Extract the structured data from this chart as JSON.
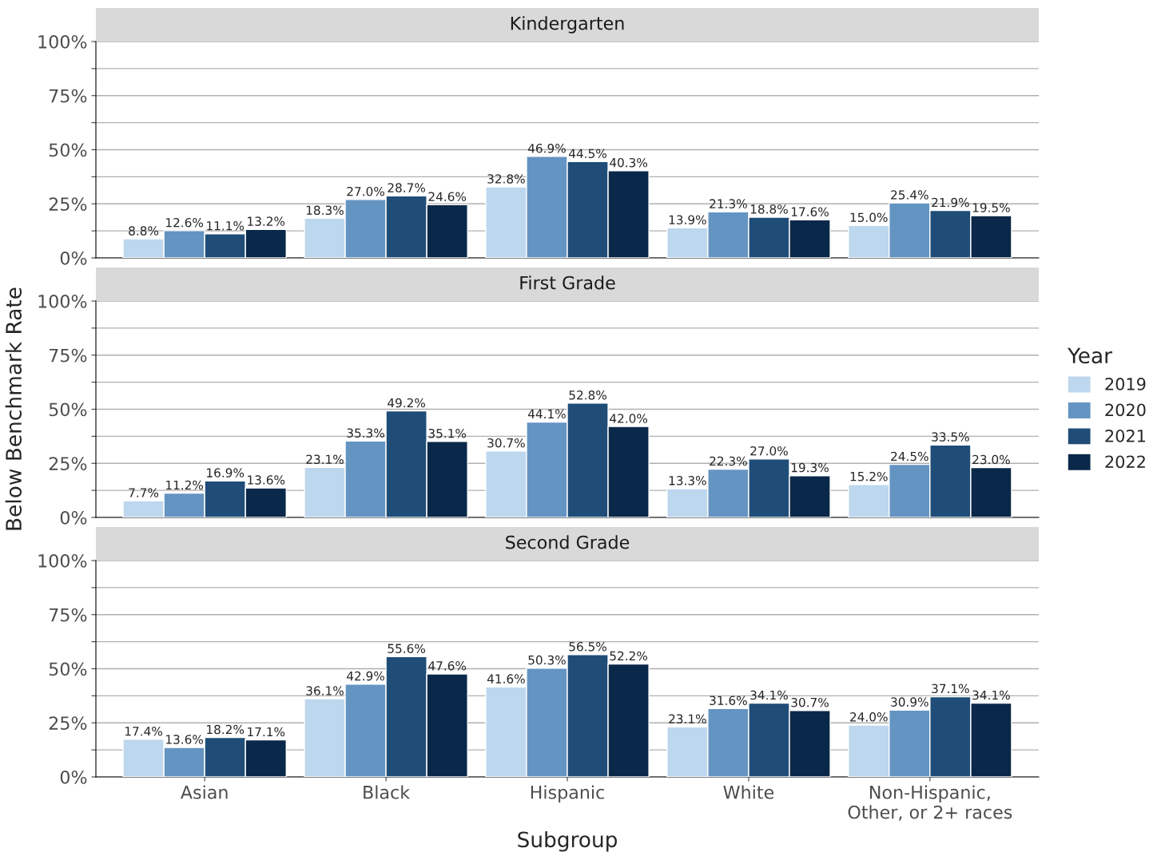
{
  "chart_data": [
    {
      "type": "bar",
      "title": "Kindergarten",
      "categories": [
        null,
        null,
        null,
        null,
        null
      ],
      "series": [
        {
          "color": "#bdd7ee",
          "values": [
            8.8,
            18.3,
            32.8,
            13.9,
            15.0
          ],
          "value_labels": [
            "8.8%",
            "18.3%",
            "32.8%",
            "13.9%",
            "15.0%"
          ]
        },
        {
          "color": "#6494c2",
          "values": [
            12.6,
            27.0,
            46.9,
            21.3,
            25.4
          ],
          "value_labels": [
            "12.6%",
            "27.0%",
            "46.9%",
            "21.3%",
            "25.4%"
          ]
        },
        {
          "color": "#1f4d78",
          "values": [
            11.1,
            28.7,
            44.5,
            18.8,
            21.9
          ],
          "value_labels": [
            "11.1%",
            "28.7%",
            "44.5%",
            "18.8%",
            "21.9%"
          ]
        },
        {
          "color": "#0a2849",
          "values": [
            13.2,
            24.6,
            40.3,
            17.6,
            19.5
          ],
          "value_labels": [
            "13.2%",
            "24.6%",
            "40.3%",
            "17.6%",
            "19.5%"
          ]
        }
      ],
      "ylim": [
        0,
        100
      ],
      "yticks": [
        {
          "value": 0,
          "label": "0%"
        },
        {
          "value": 12.5,
          "label": null
        },
        {
          "value": 25,
          "label": "25%"
        },
        {
          "value": 37.5,
          "label": null
        },
        {
          "value": 50,
          "label": "50%"
        },
        {
          "value": 62.5,
          "label": null
        },
        {
          "value": 75,
          "label": "75%"
        },
        {
          "value": 87.5,
          "label": null
        },
        {
          "value": 100,
          "label": "100%"
        }
      ],
      "grid": "y",
      "tick_labels": "y"
    },
    {
      "type": "bar",
      "title": "First Grade",
      "ylabel": "Below Benchmark Rate",
      "legend_title": "Year",
      "legend": "right",
      "categories": [
        null,
        null,
        null,
        null,
        null
      ],
      "series": [
        {
          "name": "2019",
          "color": "#bdd7ee",
          "values": [
            7.7,
            23.1,
            30.7,
            13.3,
            15.2
          ],
          "value_labels": [
            "7.7%",
            "23.1%",
            "30.7%",
            "13.3%",
            "15.2%"
          ]
        },
        {
          "name": "2020",
          "color": "#6494c2",
          "values": [
            11.2,
            35.3,
            44.1,
            22.3,
            24.5
          ],
          "value_labels": [
            "11.2%",
            "35.3%",
            "44.1%",
            "22.3%",
            "24.5%"
          ]
        },
        {
          "name": "2021",
          "color": "#1f4d78",
          "values": [
            16.9,
            49.2,
            52.8,
            27.0,
            33.5
          ],
          "value_labels": [
            "16.9%",
            "49.2%",
            "52.8%",
            "27.0%",
            "33.5%"
          ]
        },
        {
          "name": "2022",
          "color": "#0a2849",
          "values": [
            13.6,
            35.1,
            42.0,
            19.3,
            23.0
          ],
          "value_labels": [
            "13.6%",
            "35.1%",
            "42.0%",
            "19.3%",
            "23.0%"
          ]
        }
      ],
      "ylim": [
        0,
        100
      ],
      "yticks": [
        {
          "value": 0,
          "label": "0%"
        },
        {
          "value": 12.5,
          "label": null
        },
        {
          "value": 25,
          "label": "25%"
        },
        {
          "value": 37.5,
          "label": null
        },
        {
          "value": 50,
          "label": "50%"
        },
        {
          "value": 62.5,
          "label": null
        },
        {
          "value": 75,
          "label": "75%"
        },
        {
          "value": 87.5,
          "label": null
        },
        {
          "value": 100,
          "label": "100%"
        }
      ],
      "grid": "y",
      "tick_labels": "y"
    },
    {
      "type": "bar",
      "title": "Second Grade",
      "xlabel": "Subgroup",
      "categories": [
        "Asian",
        "Black",
        "Hispanic",
        "White",
        "Non-Hispanic,\nOther, or 2+ races"
      ],
      "series": [
        {
          "color": "#bdd7ee",
          "values": [
            17.4,
            36.1,
            41.6,
            23.1,
            24.0
          ],
          "value_labels": [
            "17.4%",
            "36.1%",
            "41.6%",
            "23.1%",
            "24.0%"
          ]
        },
        {
          "color": "#6494c2",
          "values": [
            13.6,
            42.9,
            50.3,
            31.6,
            30.9
          ],
          "value_labels": [
            "13.6%",
            "42.9%",
            "50.3%",
            "31.6%",
            "30.9%"
          ]
        },
        {
          "color": "#1f4d78",
          "values": [
            18.2,
            55.6,
            56.5,
            34.1,
            37.1
          ],
          "value_labels": [
            "18.2%",
            "55.6%",
            "56.5%",
            "34.1%",
            "37.1%"
          ]
        },
        {
          "color": "#0a2849",
          "values": [
            17.1,
            47.6,
            52.2,
            30.7,
            34.1
          ],
          "value_labels": [
            "17.1%",
            "47.6%",
            "52.2%",
            "30.7%",
            "34.1%"
          ]
        }
      ],
      "ylim": [
        0,
        100
      ],
      "yticks": [
        {
          "value": 0,
          "label": "0%"
        },
        {
          "value": 12.5,
          "label": null
        },
        {
          "value": 25,
          "label": "25%"
        },
        {
          "value": 37.5,
          "label": null
        },
        {
          "value": 50,
          "label": "50%"
        },
        {
          "value": 62.5,
          "label": null
        },
        {
          "value": 75,
          "label": "75%"
        },
        {
          "value": 87.5,
          "label": null
        },
        {
          "value": 100,
          "label": "100%"
        }
      ],
      "grid": "y"
    }
  ]
}
